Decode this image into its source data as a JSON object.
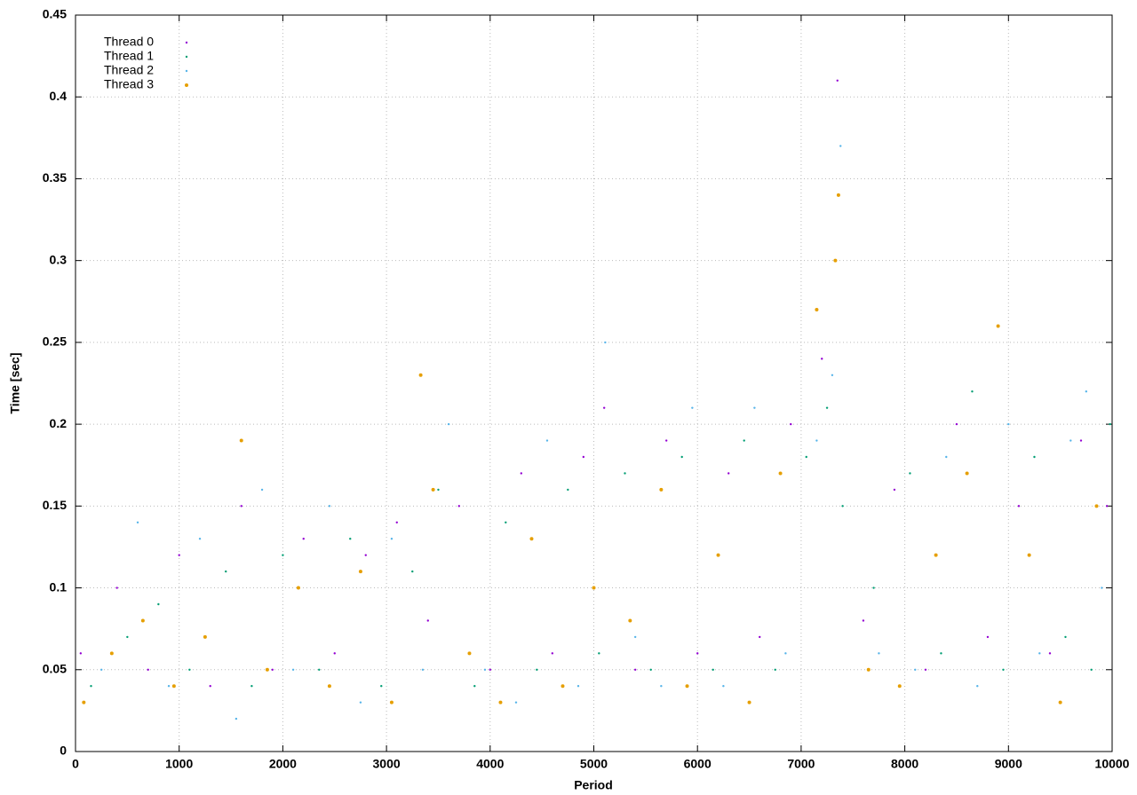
{
  "chart_data": {
    "type": "scatter",
    "x_label": "Period",
    "y_label": "Time [sec]",
    "xlim": [
      0,
      10000
    ],
    "xticks": [
      0,
      1000,
      2000,
      3000,
      4000,
      5000,
      6000,
      7000,
      8000,
      9000,
      10000
    ],
    "ylim": [
      0,
      0.45
    ],
    "yticks": [
      0,
      0.05,
      0.1,
      0.15,
      0.2,
      0.25,
      0.3,
      0.35,
      0.4,
      0.45
    ],
    "grid": true,
    "legend": "top-left",
    "series": [
      {
        "name": "Thread 0",
        "color": "#9400d3",
        "x": [
          50,
          400,
          700,
          1000,
          1300,
          1600,
          1900,
          2200,
          2500,
          2800,
          3100,
          3400,
          3700,
          4000,
          4300,
          4600,
          4900,
          5100,
          5400,
          5700,
          6000,
          6300,
          6600,
          6900,
          7200,
          7350,
          7600,
          7900,
          8200,
          8500,
          8800,
          9100,
          9400,
          9700,
          9950
        ],
        "values": [
          0.06,
          0.1,
          0.05,
          0.12,
          0.04,
          0.15,
          0.05,
          0.13,
          0.06,
          0.12,
          0.14,
          0.08,
          0.15,
          0.05,
          0.17,
          0.06,
          0.18,
          0.21,
          0.05,
          0.19,
          0.06,
          0.17,
          0.07,
          0.2,
          0.24,
          0.41,
          0.08,
          0.16,
          0.05,
          0.2,
          0.07,
          0.15,
          0.06,
          0.19,
          0.15
        ]
      },
      {
        "name": "Thread 1",
        "color": "#009e73",
        "x": [
          150,
          500,
          800,
          1100,
          1450,
          1700,
          2000,
          2350,
          2650,
          2950,
          3250,
          3500,
          3850,
          4150,
          4450,
          4750,
          5050,
          5300,
          5550,
          5850,
          6150,
          6450,
          6750,
          7050,
          7250,
          7400,
          7700,
          8050,
          8350,
          8650,
          8950,
          9250,
          9550,
          9800,
          9980
        ],
        "values": [
          0.04,
          0.07,
          0.09,
          0.05,
          0.11,
          0.04,
          0.12,
          0.05,
          0.13,
          0.04,
          0.11,
          0.16,
          0.04,
          0.14,
          0.05,
          0.16,
          0.06,
          0.17,
          0.05,
          0.18,
          0.05,
          0.19,
          0.05,
          0.18,
          0.21,
          0.15,
          0.1,
          0.17,
          0.06,
          0.22,
          0.05,
          0.18,
          0.07,
          0.05,
          0.2
        ]
      },
      {
        "name": "Thread 2",
        "color": "#56b4e9",
        "x": [
          250,
          600,
          900,
          1200,
          1550,
          1800,
          2100,
          2450,
          2750,
          3050,
          3350,
          3600,
          3950,
          4250,
          4550,
          4850,
          5110,
          5400,
          5650,
          5950,
          6250,
          6550,
          6850,
          7150,
          7300,
          7380,
          7750,
          8100,
          8400,
          8700,
          9000,
          9300,
          9600,
          9750,
          9900
        ],
        "values": [
          0.05,
          0.14,
          0.04,
          0.13,
          0.02,
          0.16,
          0.05,
          0.15,
          0.03,
          0.13,
          0.05,
          0.2,
          0.05,
          0.03,
          0.19,
          0.04,
          0.25,
          0.07,
          0.04,
          0.21,
          0.04,
          0.21,
          0.06,
          0.19,
          0.23,
          0.37,
          0.06,
          0.05,
          0.18,
          0.04,
          0.2,
          0.06,
          0.19,
          0.22,
          0.1
        ]
      },
      {
        "name": "Thread 3",
        "color": "#e69f00",
        "x": [
          80,
          350,
          650,
          950,
          1250,
          1600,
          1850,
          2150,
          2450,
          2750,
          3050,
          3330,
          3450,
          3800,
          4100,
          4400,
          4700,
          5000,
          5350,
          5650,
          5900,
          6200,
          6500,
          6800,
          7150,
          7330,
          7360,
          7650,
          7950,
          8300,
          8600,
          8900,
          9200,
          9500,
          9850
        ],
        "values": [
          0.03,
          0.06,
          0.08,
          0.04,
          0.07,
          0.19,
          0.05,
          0.1,
          0.04,
          0.11,
          0.03,
          0.23,
          0.16,
          0.06,
          0.03,
          0.13,
          0.04,
          0.1,
          0.08,
          0.16,
          0.04,
          0.12,
          0.03,
          0.17,
          0.27,
          0.3,
          0.34,
          0.05,
          0.04,
          0.12,
          0.17,
          0.26,
          0.12,
          0.03,
          0.15
        ]
      }
    ]
  }
}
